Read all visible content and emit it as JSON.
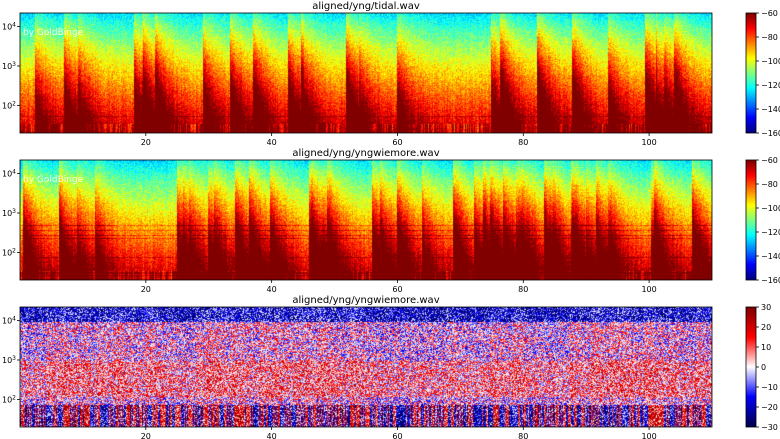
{
  "watermark": "by GoldBinge",
  "chart_data": [
    {
      "type": "heatmap",
      "title": "aligned/yng/tidal.wav",
      "xlabel": "",
      "ylabel": "",
      "x_ticks": [
        20,
        40,
        60,
        80,
        100
      ],
      "xlim": [
        0,
        110
      ],
      "y_scale": "log",
      "y_ticks": [
        {
          "value": 100,
          "label": "10^2"
        },
        {
          "value": 1000,
          "label": "10^3"
        },
        {
          "value": 10000,
          "label": "10^4"
        }
      ],
      "ylim": [
        20,
        22050
      ],
      "colormap": "jet",
      "colorbar": {
        "min": -160,
        "max": -60,
        "ticks": [
          -60,
          -80,
          -100,
          -120,
          -140,
          -160
        ]
      },
      "watermark_visible": true,
      "noise_seed": 11
    },
    {
      "type": "heatmap",
      "title": "aligned/yng/yngwiemore.wav",
      "xlabel": "",
      "ylabel": "",
      "x_ticks": [
        20,
        40,
        60,
        80,
        100
      ],
      "xlim": [
        0,
        110
      ],
      "y_scale": "log",
      "y_ticks": [
        {
          "value": 100,
          "label": "10^2"
        },
        {
          "value": 1000,
          "label": "10^3"
        },
        {
          "value": 10000,
          "label": "10^4"
        }
      ],
      "ylim": [
        20,
        22050
      ],
      "colormap": "jet",
      "colorbar": {
        "min": -160,
        "max": -60,
        "ticks": [
          -60,
          -80,
          -100,
          -120,
          -140,
          -160
        ]
      },
      "watermark_visible": true,
      "noise_seed": 23
    },
    {
      "type": "heatmap",
      "title": "aligned/yng/yngwiemore.wav",
      "xlabel": "",
      "ylabel": "",
      "x_ticks": [
        20,
        40,
        60,
        80,
        100
      ],
      "xlim": [
        0,
        110
      ],
      "y_scale": "log",
      "y_ticks": [
        {
          "value": 100,
          "label": "10^2"
        },
        {
          "value": 1000,
          "label": "10^3"
        },
        {
          "value": 10000,
          "label": "10^4"
        }
      ],
      "ylim": [
        20,
        22050
      ],
      "colormap": "seismic",
      "colorbar": {
        "min": -30,
        "max": 30,
        "ticks": [
          30,
          20,
          10,
          0,
          -10,
          -20,
          -30
        ]
      },
      "watermark_visible": false,
      "noise_seed": 37
    }
  ]
}
